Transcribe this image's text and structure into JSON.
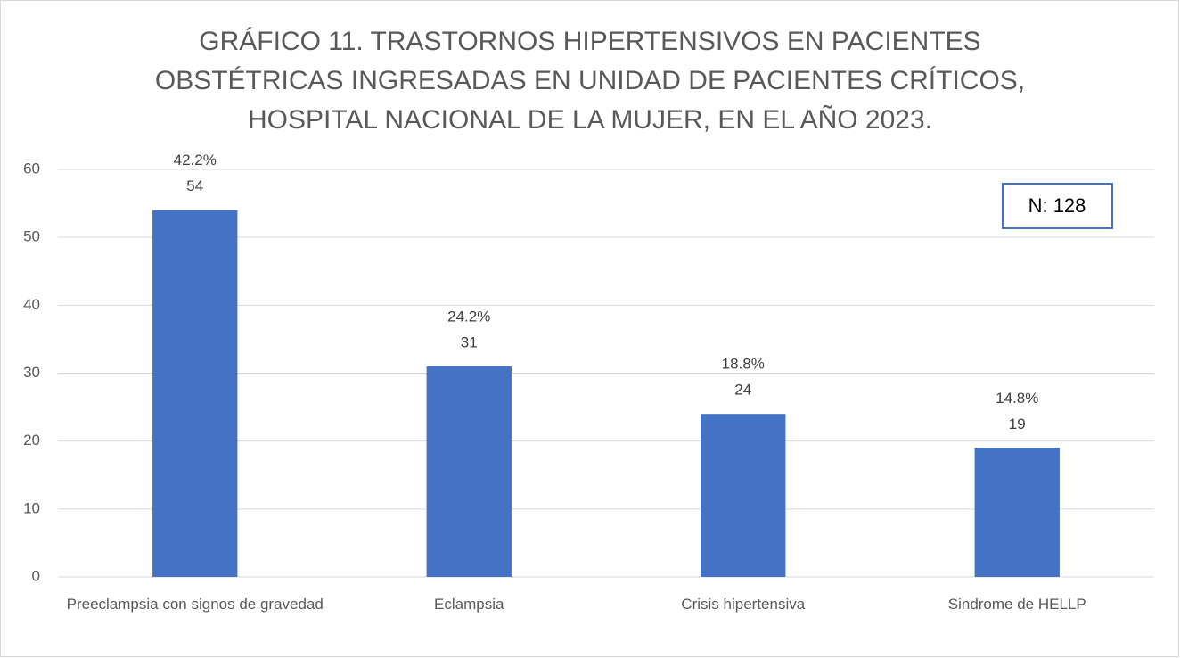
{
  "chart_data": {
    "type": "bar",
    "title": [
      "GRÁFICO 11. TRASTORNOS HIPERTENSIVOS EN PACIENTES",
      "OBSTÉTRICAS INGRESADAS EN UNIDAD DE PACIENTES CRÍTICOS,",
      "HOSPITAL NACIONAL DE LA MUJER, EN EL AÑO 2023."
    ],
    "categories": [
      "Preeclampsia con signos de gravedad",
      "Eclampsia",
      "Crisis hipertensiva",
      "Sindrome de HELLP"
    ],
    "values": [
      54,
      31,
      24,
      19
    ],
    "shares": {
      "values": [
        42.2,
        24.2,
        18.8,
        14.8
      ],
      "value_labels": [
        "42.2%",
        "24.2%",
        "18.8%",
        "14.8%"
      ]
    },
    "color": "#4472c4",
    "ylim": [
      0,
      60
    ],
    "yticks": [
      0,
      10,
      20,
      30,
      40,
      50,
      60
    ],
    "grid": true,
    "annotation": "N: 128"
  }
}
